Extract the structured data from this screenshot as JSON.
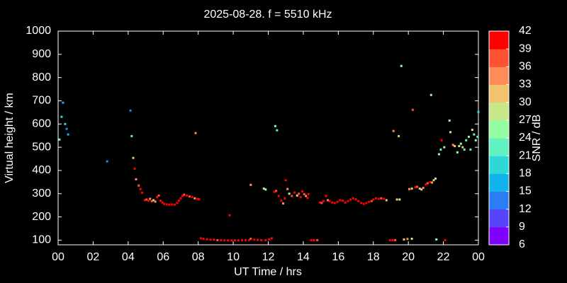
{
  "chart_data": {
    "type": "scatter",
    "title": "2025-08-28. f = 5510 kHz",
    "x_label": "UT Time / hrs",
    "y_label": "Virtual height / km",
    "xlim": [
      0,
      24
    ],
    "ylim": [
      80,
      1000
    ],
    "xticks": [
      {
        "value": 0,
        "label": "00"
      },
      {
        "value": 2,
        "label": "02"
      },
      {
        "value": 4,
        "label": "04"
      },
      {
        "value": 6,
        "label": "06"
      },
      {
        "value": 8,
        "label": "08"
      },
      10,
      12,
      14,
      16,
      18,
      20,
      22,
      {
        "value": 24,
        "label": "00"
      }
    ],
    "yticks": [
      100,
      200,
      300,
      400,
      500,
      600,
      700,
      800,
      900,
      1000
    ],
    "colorbar": {
      "label": "SNR / dB",
      "lim": [
        6,
        42
      ],
      "ticks": [
        6,
        9,
        12,
        15,
        18,
        21,
        24,
        27,
        30,
        33,
        36,
        39,
        42
      ],
      "colors": [
        "#8000ff",
        "#5645fd",
        "#2c7ef7",
        "#13b4ec",
        "#2fd8d8",
        "#60f2c0",
        "#96fda3",
        "#c6e88a",
        "#f2c46e",
        "#ff8c58",
        "#ff5232",
        "#ff0000"
      ]
    },
    "x": [
      0.08,
      0.2,
      0.28,
      0.4,
      0.49,
      0.57,
      2.8,
      4.13,
      4.2,
      4.29,
      4.37,
      4.45,
      4.6,
      4.7,
      4.8,
      4.95,
      5.05,
      5.15,
      5.25,
      5.35,
      5.45,
      5.55,
      5.65,
      5.75,
      5.85,
      5.95,
      6.05,
      6.2,
      6.35,
      6.5,
      6.65,
      6.8,
      6.9,
      7.0,
      7.1,
      7.2,
      7.35,
      7.5,
      7.65,
      7.8,
      7.95,
      8.05,
      7.85,
      8.15,
      8.3,
      8.5,
      8.7,
      8.9,
      9.1,
      9.3,
      9.5,
      9.7,
      9.9,
      10.1,
      10.3,
      10.5,
      10.7,
      10.9,
      11.0,
      11.2,
      11.4,
      11.6,
      11.85,
      12.05,
      12.2,
      9.8,
      11.0,
      11.75,
      11.85,
      12.35,
      12.45,
      12.4,
      12.5,
      12.6,
      12.75,
      12.85,
      12.95,
      13.0,
      13.1,
      13.2,
      13.35,
      13.5,
      13.65,
      13.75,
      13.85,
      13.95,
      14.05,
      14.15,
      14.3,
      14.25,
      14.45,
      14.6,
      14.8,
      14.95,
      15.05,
      15.15,
      15.3,
      15.4,
      15.5,
      15.65,
      15.8,
      15.95,
      16.1,
      16.25,
      16.4,
      16.55,
      16.7,
      16.85,
      17.0,
      17.15,
      17.3,
      17.45,
      17.6,
      17.75,
      17.9,
      18.0,
      18.15,
      18.3,
      18.45,
      18.6,
      18.75,
      18.95,
      19.1,
      19.25,
      19.15,
      19.35,
      19.5,
      19.45,
      19.6,
      19.75,
      19.95,
      20.2,
      20.25,
      20.05,
      20.2,
      20.4,
      20.5,
      20.65,
      20.75,
      20.85,
      21.0,
      21.1,
      21.25,
      21.35,
      21.45,
      21.55,
      21.3,
      21.6,
      22.1,
      21.75,
      21.85,
      21.9,
      22.05,
      22.35,
      22.4,
      22.55,
      22.65,
      22.8,
      22.9,
      23.0,
      23.1,
      23.2,
      23.3,
      23.45,
      23.55,
      23.65,
      23.75,
      23.85,
      23.95,
      24.0
    ],
    "y": [
      533,
      631,
      692,
      600,
      579,
      555,
      439,
      658,
      548,
      454,
      408,
      362,
      335,
      320,
      304,
      272,
      275,
      270,
      278,
      268,
      272,
      266,
      285,
      292,
      270,
      262,
      256,
      254,
      253,
      254,
      253,
      260,
      270,
      280,
      290,
      296,
      292,
      288,
      285,
      280,
      278,
      276,
      561,
      108,
      106,
      104,
      102,
      102,
      100,
      100,
      99,
      99,
      99,
      99,
      99,
      100,
      100,
      100,
      106,
      102,
      101,
      100,
      100,
      103,
      108,
      207,
      338,
      322,
      318,
      308,
      312,
      591,
      573,
      290,
      270,
      258,
      280,
      358,
      320,
      300,
      290,
      305,
      292,
      300,
      285,
      310,
      298,
      290,
      298,
      282,
      100,
      100,
      100,
      262,
      260,
      268,
      290,
      272,
      268,
      262,
      260,
      265,
      272,
      270,
      262,
      268,
      275,
      280,
      276,
      268,
      260,
      256,
      260,
      265,
      268,
      275,
      280,
      278,
      280,
      278,
      272,
      100,
      100,
      100,
      570,
      275,
      275,
      548,
      850,
      103,
      105,
      106,
      661,
      320,
      322,
      328,
      330,
      322,
      318,
      325,
      340,
      345,
      350,
      348,
      358,
      365,
      725,
      103,
      100,
      470,
      490,
      530,
      500,
      615,
      565,
      510,
      505,
      478,
      505,
      515,
      500,
      490,
      530,
      545,
      490,
      575,
      555,
      530,
      545,
      652
    ],
    "snr": [
      21,
      18,
      15,
      18,
      12,
      15,
      12,
      12,
      21,
      30,
      39,
      33,
      36,
      39,
      39,
      39,
      36,
      39,
      33,
      36,
      30,
      33,
      39,
      36,
      39,
      39,
      39,
      39,
      39,
      39,
      39,
      39,
      39,
      39,
      39,
      36,
      39,
      36,
      39,
      33,
      39,
      39,
      33,
      39,
      39,
      39,
      39,
      39,
      36,
      39,
      39,
      39,
      39,
      39,
      39,
      39,
      39,
      39,
      36,
      39,
      39,
      39,
      39,
      39,
      39,
      39,
      33,
      27,
      24,
      39,
      36,
      24,
      21,
      39,
      39,
      33,
      39,
      39,
      33,
      27,
      36,
      39,
      30,
      36,
      39,
      39,
      36,
      33,
      39,
      39,
      39,
      39,
      36,
      39,
      36,
      39,
      39,
      33,
      39,
      39,
      39,
      39,
      39,
      39,
      39,
      39,
      39,
      39,
      39,
      39,
      39,
      39,
      39,
      39,
      36,
      39,
      39,
      39,
      36,
      39,
      30,
      39,
      39,
      36,
      33,
      30,
      27,
      30,
      24,
      30,
      33,
      27,
      36,
      33,
      30,
      39,
      36,
      30,
      27,
      33,
      39,
      36,
      39,
      33,
      30,
      27,
      24,
      24,
      39,
      24,
      21,
      39,
      24,
      24,
      27,
      33,
      30,
      24,
      27,
      24,
      30,
      21,
      21,
      24,
      21,
      27,
      21,
      24,
      21,
      18
    ]
  }
}
